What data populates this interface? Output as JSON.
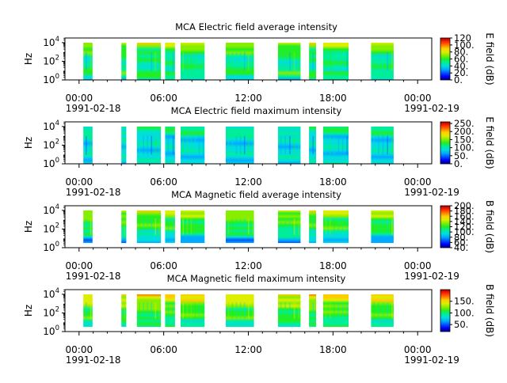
{
  "figure": {
    "time_ticks": [
      "00:00",
      "06:00",
      "12:00",
      "18:00",
      "00:00"
    ],
    "date_start": "1991-02-18",
    "date_end": "1991-02-19"
  },
  "colormap": [
    "#5a0000",
    "#00008c",
    "#0000ff",
    "#0055ff",
    "#00aaff",
    "#00dddd",
    "#00ee99",
    "#22ee22",
    "#88ee00",
    "#ddee00",
    "#ffcc00",
    "#ff7700",
    "#ff2200",
    "#aa0000"
  ],
  "chart_data": [
    {
      "type": "heatmap",
      "title": "MCA  Electric field average intensity",
      "ylabel": "Hz",
      "y_ticks": [
        "10",
        "10",
        "10"
      ],
      "y_tick_exponents": [
        "0",
        "2",
        "4"
      ],
      "y_log_range": [
        0,
        4.5
      ],
      "x_range_hours": [
        -1,
        25
      ],
      "colorbar_label": "E field (dB)",
      "colorbar_range": [
        0,
        120
      ],
      "colorbar_ticks": [
        "120",
        "100.",
        "80.",
        "60.",
        "40.",
        "20.",
        "0."
      ],
      "colorbar_values": [
        120,
        100,
        80,
        60,
        40,
        20,
        0
      ],
      "segments": [
        [
          0.3,
          0.95
        ],
        [
          3.0,
          3.35
        ],
        [
          4.1,
          5.8
        ],
        [
          6.1,
          6.8
        ],
        [
          7.2,
          8.9
        ],
        [
          10.4,
          12.4
        ],
        [
          14.1,
          15.7
        ],
        [
          16.3,
          16.8
        ],
        [
          17.3,
          19.1
        ],
        [
          20.7,
          22.3
        ]
      ],
      "band_log_range": [
        0,
        4.0
      ],
      "level_profile": [
        9,
        8,
        7,
        7,
        6,
        6,
        6,
        6,
        6,
        7,
        6,
        5
      ]
    },
    {
      "type": "heatmap",
      "title": "MCA  Electric field maximum intensity",
      "ylabel": "Hz",
      "y_ticks": [
        "10",
        "10",
        "10"
      ],
      "y_tick_exponents": [
        "0",
        "2",
        "4"
      ],
      "y_log_range": [
        0,
        4.5
      ],
      "x_range_hours": [
        -1,
        25
      ],
      "colorbar_label": "E field (dB)",
      "colorbar_range": [
        0,
        260
      ],
      "colorbar_ticks": [
        "250.",
        "200.",
        "150.",
        "100.",
        "50.",
        "0."
      ],
      "colorbar_values": [
        250,
        200,
        150,
        100,
        50,
        0
      ],
      "segments": [
        [
          0.3,
          0.95
        ],
        [
          3.0,
          3.35
        ],
        [
          4.1,
          5.8
        ],
        [
          6.1,
          6.8
        ],
        [
          7.2,
          8.9
        ],
        [
          10.4,
          12.4
        ],
        [
          14.1,
          15.7
        ],
        [
          16.3,
          16.8
        ],
        [
          17.3,
          19.1
        ],
        [
          20.7,
          22.3
        ]
      ],
      "band_log_range": [
        0,
        4.0
      ],
      "level_profile": [
        6,
        6,
        6,
        5,
        5,
        5,
        5,
        5,
        5,
        5,
        5,
        5
      ]
    },
    {
      "type": "heatmap",
      "title": "MCA  Magnetic field average intensity",
      "ylabel": "Hz",
      "y_ticks": [
        "10",
        "10",
        "10"
      ],
      "y_tick_exponents": [
        "0",
        "2",
        "4"
      ],
      "y_log_range": [
        0,
        4.5
      ],
      "x_range_hours": [
        -1,
        25
      ],
      "colorbar_label": "B field (dB)",
      "colorbar_range": [
        40,
        200
      ],
      "colorbar_ticks": [
        "200.",
        "180.",
        "160.",
        "140.",
        "120.",
        "100.",
        "80.",
        "60.",
        "40."
      ],
      "colorbar_values": [
        200,
        180,
        160,
        140,
        120,
        100,
        80,
        60,
        40
      ],
      "segments": [
        [
          0.3,
          0.95
        ],
        [
          3.0,
          3.35
        ],
        [
          4.1,
          5.8
        ],
        [
          6.1,
          6.8
        ],
        [
          7.2,
          8.9
        ],
        [
          10.4,
          12.4
        ],
        [
          14.1,
          15.7
        ],
        [
          16.3,
          16.8
        ],
        [
          17.3,
          19.1
        ],
        [
          20.7,
          22.3
        ]
      ],
      "band_log_range": [
        0.5,
        4.0
      ],
      "level_profile": [
        9,
        8,
        8,
        7,
        7,
        7,
        7,
        6,
        6,
        5,
        4,
        4
      ]
    },
    {
      "type": "heatmap",
      "title": "MCA  Magnetic field maximum intensity",
      "ylabel": "Hz",
      "y_ticks": [
        "10",
        "10",
        "10"
      ],
      "y_tick_exponents": [
        "0",
        "2",
        "4"
      ],
      "y_log_range": [
        0,
        4.5
      ],
      "x_range_hours": [
        -1,
        25
      ],
      "colorbar_label": "B field (dB)",
      "colorbar_range": [
        20,
        200
      ],
      "colorbar_ticks": [
        "150.",
        "100.",
        "50."
      ],
      "colorbar_values": [
        150,
        100,
        50
      ],
      "segments": [
        [
          0.3,
          0.95
        ],
        [
          3.0,
          3.35
        ],
        [
          4.1,
          5.8
        ],
        [
          6.1,
          6.8
        ],
        [
          7.2,
          8.9
        ],
        [
          10.4,
          12.4
        ],
        [
          14.1,
          15.7
        ],
        [
          16.3,
          16.8
        ],
        [
          17.3,
          19.1
        ],
        [
          20.7,
          22.3
        ]
      ],
      "band_log_range": [
        0.5,
        4.0
      ],
      "level_profile": [
        10,
        9,
        9,
        8,
        8,
        7,
        7,
        7,
        7,
        6,
        6,
        6
      ]
    }
  ]
}
